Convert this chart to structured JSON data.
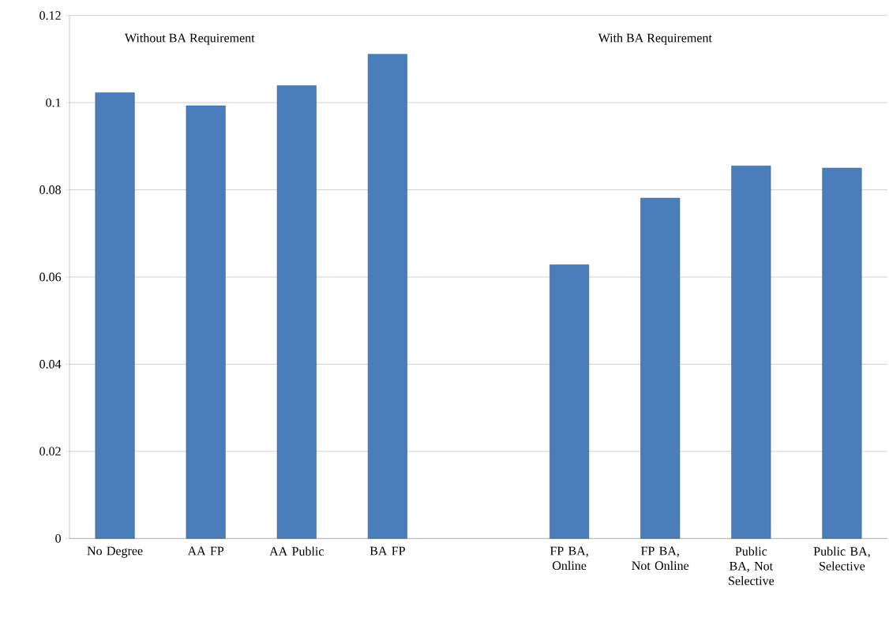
{
  "chart_data": {
    "type": "bar",
    "categories": [
      "No Degree",
      "AA FP",
      "AA Public",
      "BA FP",
      null,
      "FP BA, Online",
      "FP BA, Not Online",
      "Public BA, Not Selective",
      "Public BA, Selective"
    ],
    "values": [
      0.1023,
      0.0993,
      0.1039,
      0.1111,
      null,
      0.0628,
      0.0781,
      0.0855,
      0.085
    ],
    "color": "#4a7ebb",
    "ylim": [
      0,
      0.12
    ],
    "yticks": [
      0,
      0.02,
      0.04,
      0.06,
      0.08,
      0.1,
      0.12
    ],
    "grid": "y",
    "annotations": [
      "Without BA Requirement",
      "With BA Requirement"
    ]
  }
}
